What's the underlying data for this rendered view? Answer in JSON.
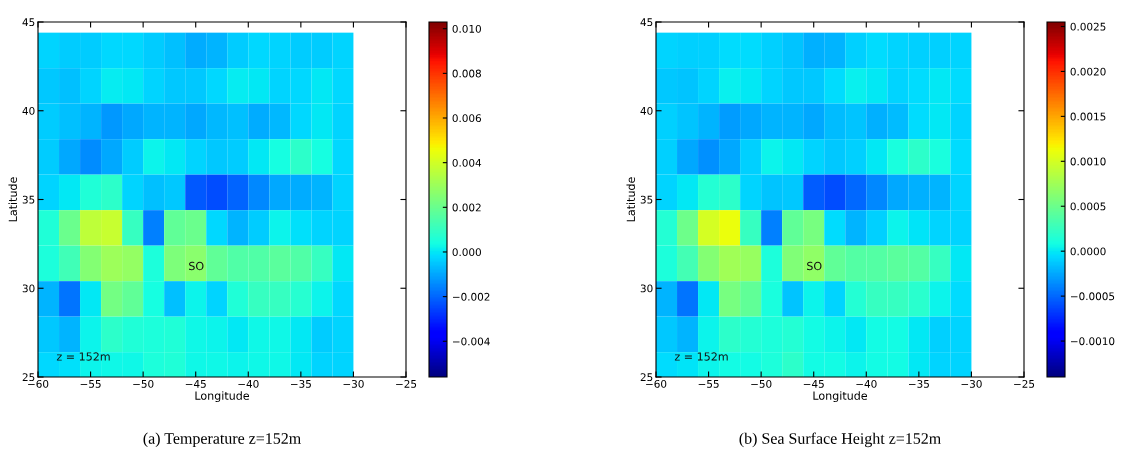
{
  "chart_data": [
    {
      "type": "heatmap",
      "title": "(a) Temperature z=152m",
      "xlabel": "Longitude",
      "ylabel": "Latitude",
      "x": [
        -59,
        -57,
        -55,
        -53,
        -51,
        -49,
        -47,
        -45,
        -43,
        -41,
        -39,
        -37,
        -35,
        -33,
        -31
      ],
      "y": [
        43.4,
        41.4,
        39.4,
        37.4,
        35.4,
        33.4,
        31.4,
        29.4,
        27.4,
        25.4
      ],
      "cells": [
        [
          -0.0003,
          -0.0004,
          -0.0004,
          -0.0002,
          -0.0002,
          -0.0004,
          -0.0006,
          -0.0009,
          -0.0008,
          -0.0004,
          -0.0002,
          -0.0003,
          -0.0004,
          -0.0004,
          -0.0003
        ],
        [
          -0.0005,
          -0.0006,
          -0.0003,
          0.0001,
          0,
          -0.0003,
          -0.0005,
          -0.0005,
          -0.0002,
          0.0001,
          0,
          -0.0003,
          -0.0002,
          0,
          -0.0002
        ],
        [
          -0.0004,
          -0.0006,
          -0.0008,
          -0.0012,
          -0.001,
          -0.0008,
          -0.0008,
          -0.001,
          -0.0007,
          -0.0006,
          -0.0009,
          -0.0007,
          -0.0002,
          0,
          -0.0003
        ],
        [
          -0.0004,
          -0.001,
          -0.0014,
          -0.001,
          -0.0004,
          0.0002,
          0,
          -0.0003,
          -0.0005,
          -0.0004,
          0,
          0.0004,
          0.0008,
          0.0004,
          -0.0002
        ],
        [
          -0.0003,
          0,
          0.0006,
          0.0008,
          -0.0003,
          -0.0006,
          -0.0005,
          -0.0022,
          -0.0024,
          -0.002,
          -0.0015,
          -0.001,
          -0.0009,
          -0.0008,
          -0.0003
        ],
        [
          0.0006,
          0.002,
          0.0036,
          0.0038,
          0.001,
          -0.0016,
          0.0018,
          0.002,
          -0.0002,
          -0.0008,
          -0.0004,
          0.0002,
          -0.0001,
          -0.0003,
          -0.0003
        ],
        [
          0.0005,
          0.0012,
          0.0025,
          0.003,
          0.0028,
          0.0005,
          0.0024,
          0.0026,
          0.0018,
          0.0015,
          0.0015,
          0.0017,
          0.0015,
          0.001,
          0
        ],
        [
          -0.0008,
          -0.0018,
          0,
          0.0022,
          0.0018,
          0.0004,
          -0.0006,
          0.0002,
          -0.0003,
          0.0006,
          0.001,
          0.001,
          0.0007,
          0.0002,
          -0.0002
        ],
        [
          -0.0005,
          -0.0008,
          0.0002,
          0.0008,
          0.0006,
          0.0005,
          0.0006,
          0.0003,
          0.0002,
          0,
          0.0003,
          0.0003,
          0,
          -0.0004,
          -0.0003
        ],
        [
          -0.0002,
          -0.0001,
          0.0002,
          0.0003,
          0.0003,
          0.0005,
          0.0006,
          0.0003,
          0.0003,
          0.0002,
          0.0003,
          0.0003,
          0,
          -0.0003,
          -0.0003
        ]
      ],
      "clim": [
        -0.0056,
        0.0103
      ],
      "cticks": [
        {
          "value": -0.004,
          "label": "−0.004"
        },
        {
          "value": -0.002,
          "label": "−0.002"
        },
        {
          "value": 0,
          "label": "0.000"
        },
        {
          "value": 0.002,
          "label": "0.002"
        },
        {
          "value": 0.004,
          "label": "0.004"
        },
        {
          "value": 0.006,
          "label": "0.006"
        },
        {
          "value": 0.008,
          "label": "0.008"
        },
        {
          "value": 0.01,
          "label": "0.010"
        }
      ],
      "xlim": [
        -60,
        -25
      ],
      "ylim": [
        25,
        45
      ],
      "xticks": [
        {
          "value": -60,
          "label": "−60"
        },
        {
          "value": -55,
          "label": "−55"
        },
        {
          "value": -50,
          "label": "−50"
        },
        {
          "value": -45,
          "label": "−45"
        },
        {
          "value": -40,
          "label": "−40"
        },
        {
          "value": -35,
          "label": "−35"
        },
        {
          "value": -30,
          "label": "−30"
        },
        {
          "value": -25,
          "label": "−25"
        }
      ],
      "yticks": [
        25,
        30,
        35,
        40,
        45
      ],
      "annotations": [
        "SO",
        "z = 152m"
      ]
    },
    {
      "type": "heatmap",
      "title": "(b) Sea Surface Height z=152m",
      "xlabel": "Longitude",
      "ylabel": "Latitude",
      "x": [
        -59,
        -57,
        -55,
        -53,
        -51,
        -49,
        -47,
        -45,
        -43,
        -41,
        -39,
        -37,
        -35,
        -33,
        -31
      ],
      "y": [
        43.4,
        41.4,
        39.4,
        37.4,
        35.4,
        33.4,
        31.4,
        29.4,
        27.4,
        25.4
      ],
      "cells": [
        [
          -8e-05,
          -0.0001,
          -0.0001,
          -5e-05,
          -5e-05,
          -0.0001,
          -0.00015,
          -0.00022,
          -0.0002,
          -0.0001,
          -5e-05,
          -8e-05,
          -0.0001,
          -0.0001,
          -8e-05
        ],
        [
          -0.00012,
          -0.00015,
          -8e-05,
          2e-05,
          0,
          -8e-05,
          -0.00012,
          -0.00012,
          -5e-05,
          2e-05,
          0,
          -8e-05,
          -5e-05,
          0,
          -5e-05
        ],
        [
          -0.0001,
          -0.00015,
          -0.0002,
          -0.0003,
          -0.00025,
          -0.0002,
          -0.0002,
          -0.00025,
          -0.00018,
          -0.00015,
          -0.00022,
          -0.00018,
          -5e-05,
          0,
          -8e-05
        ],
        [
          -0.0001,
          -0.00025,
          -0.00035,
          -0.00025,
          -0.0001,
          5e-05,
          0,
          -8e-05,
          -0.00012,
          -0.0001,
          0,
          0.0001,
          0.0002,
          0.0001,
          -5e-05
        ],
        [
          -8e-05,
          0,
          0.00015,
          0.0002,
          -8e-05,
          -0.00015,
          -0.00012,
          -0.00055,
          -0.0006,
          -0.0005,
          -0.00038,
          -0.00025,
          -0.00022,
          -0.0002,
          -8e-05
        ],
        [
          0.00015,
          0.0005,
          0.001,
          0.0011,
          0.00025,
          -0.0004,
          0.00045,
          0.00055,
          -5e-05,
          -0.0002,
          -0.0001,
          5e-05,
          -2e-05,
          -8e-05,
          -8e-05
        ],
        [
          0.00012,
          0.0003,
          0.00062,
          0.00075,
          0.0007,
          0.00012,
          0.0006,
          0.00068,
          0.00045,
          0.00038,
          0.00038,
          0.00042,
          0.00038,
          0.00025,
          0
        ],
        [
          -0.0002,
          -0.00045,
          0,
          0.00055,
          0.00045,
          0.0001,
          -0.00015,
          5e-05,
          -8e-05,
          0.00015,
          0.00025,
          0.00025,
          0.00018,
          5e-05,
          -5e-05
        ],
        [
          -0.00012,
          -0.0002,
          5e-05,
          0.0002,
          0.00015,
          0.00012,
          0.00015,
          8e-05,
          5e-05,
          0,
          8e-05,
          8e-05,
          0,
          -0.0001,
          -8e-05
        ],
        [
          -5e-05,
          -2e-05,
          5e-05,
          8e-05,
          8e-05,
          0.00012,
          0.0002,
          8e-05,
          8e-05,
          5e-05,
          8e-05,
          8e-05,
          0,
          -8e-05,
          -8e-05
        ]
      ],
      "clim": [
        -0.0014,
        0.00255
      ],
      "cticks": [
        {
          "value": -0.001,
          "label": "−0.0010"
        },
        {
          "value": -0.0005,
          "label": "−0.0005"
        },
        {
          "value": 0,
          "label": "0.0000"
        },
        {
          "value": 0.0005,
          "label": "0.0005"
        },
        {
          "value": 0.001,
          "label": "0.0010"
        },
        {
          "value": 0.0015,
          "label": "0.0015"
        },
        {
          "value": 0.002,
          "label": "0.0020"
        },
        {
          "value": 0.0025,
          "label": "0.0025"
        }
      ],
      "xlim": [
        -60,
        -25
      ],
      "ylim": [
        25,
        45
      ],
      "xticks": [
        {
          "value": -60,
          "label": "−60"
        },
        {
          "value": -55,
          "label": "−55"
        },
        {
          "value": -50,
          "label": "−50"
        },
        {
          "value": -45,
          "label": "−45"
        },
        {
          "value": -40,
          "label": "−40"
        },
        {
          "value": -35,
          "label": "−35"
        },
        {
          "value": -30,
          "label": "−30"
        },
        {
          "value": -25,
          "label": "−25"
        }
      ],
      "yticks": [
        25,
        30,
        35,
        40,
        45
      ],
      "annotations": [
        "SO",
        "z = 152m"
      ]
    }
  ]
}
